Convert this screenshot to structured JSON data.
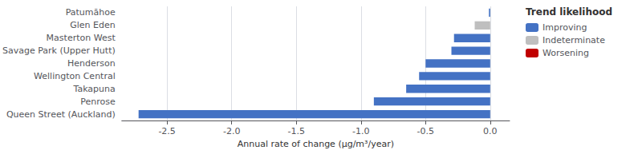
{
  "chart_data": {
    "type": "bar",
    "orientation": "horizontal",
    "categories": [
      "Queen Street (Auckland)",
      "Penrose",
      "Takapuna",
      "Wellington Central",
      "Henderson",
      "Savage Park (Upper Hutt)",
      "Masterton West",
      "Glen Eden",
      "Patumāhoe"
    ],
    "series": [
      {
        "name": "Improving",
        "color": "#4472C4",
        "values": [
          -2.72,
          -0.9,
          -0.65,
          -0.55,
          -0.5,
          -0.3,
          -0.28,
          null,
          -0.01
        ]
      },
      {
        "name": "Indeterminate",
        "color": "#BFBFBF",
        "values": [
          null,
          null,
          null,
          null,
          null,
          null,
          null,
          -0.12,
          null
        ]
      },
      {
        "name": "Worsening",
        "color": "#C00000",
        "values": [
          null,
          null,
          null,
          null,
          null,
          null,
          null,
          null,
          null
        ]
      }
    ],
    "xlabel": "Annual rate of change (μg/m³/year)",
    "xlim": [
      -2.85,
      0.15
    ],
    "xticks": [
      -2.5,
      {
        "value": -2.0,
        "label": "-2.0"
      },
      -1.5,
      {
        "value": -1.0,
        "label": "-1.0"
      },
      -0.5,
      {
        "value": 0.0,
        "label": "0.0"
      }
    ],
    "legend_title": "Trend likelihood",
    "legend": "right",
    "grid": true
  }
}
